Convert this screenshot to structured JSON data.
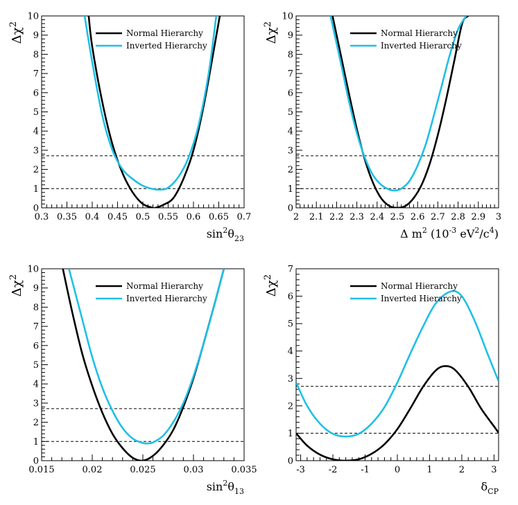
{
  "chart_data": [
    {
      "type": "line",
      "xlabel_parts": [
        "sin",
        "2",
        "θ",
        "23"
      ],
      "ylabel": "Δχ",
      "ylabel_sup": "2",
      "xlim": [
        0.3,
        0.7
      ],
      "ylim": [
        0,
        10
      ],
      "xticks": [
        "0.3",
        "0.35",
        "0.4",
        "0.45",
        "0.5",
        "0.55",
        "0.6",
        "0.65",
        "0.7"
      ],
      "yticks": [
        "0",
        "1",
        "2",
        "3",
        "4",
        "5",
        "6",
        "7",
        "8",
        "9",
        "10"
      ],
      "ref_lines": [
        1.0,
        2.71
      ],
      "legend": [
        "Normal Hierarchy",
        "Inverted Hierarchy"
      ],
      "series": [
        {
          "name": "Normal Hierarchy",
          "color": "#000000",
          "x": [
            0.393,
            0.4,
            0.42,
            0.44,
            0.46,
            0.48,
            0.5,
            0.52,
            0.525,
            0.54,
            0.56,
            0.58,
            0.6,
            0.62,
            0.64,
            0.652
          ],
          "y": [
            10,
            8.4,
            5.5,
            3.3,
            1.8,
            0.8,
            0.2,
            0.0,
            0.0,
            0.15,
            0.5,
            1.5,
            3.0,
            5.3,
            8.2,
            10
          ]
        },
        {
          "name": "Inverted Hierarchy",
          "color": "#1ec0e6",
          "x": [
            0.385,
            0.4,
            0.42,
            0.44,
            0.46,
            0.48,
            0.5,
            0.52,
            0.535,
            0.55,
            0.57,
            0.59,
            0.61,
            0.63,
            0.645
          ],
          "y": [
            10,
            7.6,
            4.8,
            3.0,
            2.0,
            1.5,
            1.15,
            0.98,
            0.95,
            1.05,
            1.6,
            2.6,
            4.3,
            7.0,
            10
          ]
        }
      ]
    },
    {
      "type": "line",
      "xlabel_parts": [
        "Δ m",
        "2",
        " (10",
        "-3",
        " eV",
        "2",
        "/c",
        "4",
        ")"
      ],
      "ylabel": "Δχ",
      "ylabel_sup": "2",
      "xlim": [
        2.0,
        3.0
      ],
      "ylim": [
        0,
        10
      ],
      "xticks": [
        "2",
        "2.1",
        "2.2",
        "2.3",
        "2.4",
        "2.5",
        "2.6",
        "2.7",
        "2.8",
        "2.9",
        "3"
      ],
      "yticks": [
        "0",
        "1",
        "2",
        "3",
        "4",
        "5",
        "6",
        "7",
        "8",
        "9",
        "10"
      ],
      "ref_lines": [
        1.0,
        2.71
      ],
      "legend": [
        "Normal Hierarchy",
        "Inverted Hierarchy"
      ],
      "series": [
        {
          "name": "Normal Hierarchy",
          "color": "#000000",
          "x": [
            2.18,
            2.22,
            2.26,
            2.3,
            2.34,
            2.38,
            2.42,
            2.46,
            2.5,
            2.54,
            2.58,
            2.62,
            2.66,
            2.7,
            2.74,
            2.78,
            2.82,
            2.85
          ],
          "y": [
            10,
            8.0,
            6.0,
            4.1,
            2.5,
            1.3,
            0.5,
            0.1,
            0.0,
            0.1,
            0.5,
            1.2,
            2.3,
            3.8,
            5.6,
            7.6,
            9.6,
            10
          ]
        },
        {
          "name": "Inverted Hierarchy",
          "color": "#1ec0e6",
          "x": [
            2.17,
            2.22,
            2.26,
            2.3,
            2.34,
            2.38,
            2.42,
            2.46,
            2.49,
            2.52,
            2.56,
            2.6,
            2.64,
            2.68,
            2.72,
            2.76,
            2.8,
            2.84
          ],
          "y": [
            10,
            7.6,
            5.6,
            3.9,
            2.6,
            1.7,
            1.2,
            0.95,
            0.9,
            1.0,
            1.4,
            2.2,
            3.3,
            4.8,
            6.4,
            8.0,
            9.3,
            10
          ]
        }
      ]
    },
    {
      "type": "line",
      "xlabel_parts": [
        "sin",
        "2",
        "θ",
        "13"
      ],
      "ylabel": "Δχ",
      "ylabel_sup": "2",
      "xlim": [
        0.015,
        0.035
      ],
      "ylim": [
        0,
        10
      ],
      "xticks": [
        "0.015",
        "0.02",
        "0.025",
        "0.03",
        "0.035"
      ],
      "yticks": [
        "0",
        "1",
        "2",
        "3",
        "4",
        "5",
        "6",
        "7",
        "8",
        "9",
        "10"
      ],
      "ref_lines": [
        1.0,
        2.71
      ],
      "legend": [
        "Normal Hierarchy",
        "Inverted Hierarchy"
      ],
      "series": [
        {
          "name": "Normal Hierarchy",
          "color": "#000000",
          "x": [
            0.0171,
            0.018,
            0.019,
            0.02,
            0.021,
            0.022,
            0.023,
            0.024,
            0.025,
            0.026,
            0.027,
            0.028,
            0.029,
            0.03,
            0.031,
            0.032,
            0.033
          ],
          "y": [
            10,
            7.8,
            5.6,
            3.9,
            2.5,
            1.4,
            0.65,
            0.15,
            0.0,
            0.25,
            0.8,
            1.6,
            2.8,
            4.3,
            6.1,
            8.0,
            10
          ]
        },
        {
          "name": "Inverted Hierarchy",
          "color": "#1ec0e6",
          "x": [
            0.0177,
            0.019,
            0.02,
            0.021,
            0.022,
            0.023,
            0.024,
            0.025,
            0.0255,
            0.026,
            0.027,
            0.028,
            0.029,
            0.03,
            0.031,
            0.032,
            0.033
          ],
          "y": [
            10,
            7.4,
            5.4,
            3.8,
            2.6,
            1.7,
            1.15,
            0.92,
            0.9,
            0.95,
            1.3,
            2.0,
            3.0,
            4.4,
            6.1,
            8.0,
            10
          ]
        }
      ]
    },
    {
      "type": "line",
      "xlabel_parts": [
        "δ",
        "CP"
      ],
      "ylabel": "Δχ",
      "ylabel_sup": "2",
      "xlim": [
        -3.14159,
        3.14159
      ],
      "ylim": [
        0,
        7
      ],
      "xticks": [
        "-3",
        "-2",
        "-1",
        "0",
        "1",
        "2",
        "3"
      ],
      "xtick_values": [
        -3,
        -2,
        -1,
        0,
        1,
        2,
        3
      ],
      "yticks": [
        "0",
        "1",
        "2",
        "3",
        "4",
        "5",
        "6",
        "7"
      ],
      "ref_lines": [
        1.0,
        2.71
      ],
      "legend": [
        "Normal Hierarchy",
        "Inverted Hierarchy"
      ],
      "series": [
        {
          "name": "Normal Hierarchy",
          "color": "#000000",
          "x": [
            -3.14,
            -2.8,
            -2.4,
            -2.0,
            -1.6,
            -1.2,
            -0.8,
            -0.4,
            0.0,
            0.4,
            0.8,
            1.2,
            1.5,
            1.8,
            2.2,
            2.6,
            3.0,
            3.14
          ],
          "y": [
            1.0,
            0.55,
            0.22,
            0.05,
            0.0,
            0.05,
            0.25,
            0.6,
            1.15,
            1.9,
            2.7,
            3.3,
            3.45,
            3.3,
            2.7,
            1.9,
            1.25,
            1.02
          ]
        },
        {
          "name": "Inverted Hierarchy",
          "color": "#1ec0e6",
          "x": [
            -3.14,
            -2.8,
            -2.4,
            -2.0,
            -1.6,
            -1.2,
            -0.8,
            -0.4,
            0.0,
            0.4,
            0.8,
            1.2,
            1.65,
            2.0,
            2.4,
            2.8,
            3.14
          ],
          "y": [
            2.85,
            2.0,
            1.35,
            0.98,
            0.88,
            0.98,
            1.35,
            1.95,
            2.85,
            3.9,
            4.9,
            5.75,
            6.17,
            6.0,
            5.1,
            3.9,
            2.9
          ]
        }
      ]
    }
  ]
}
